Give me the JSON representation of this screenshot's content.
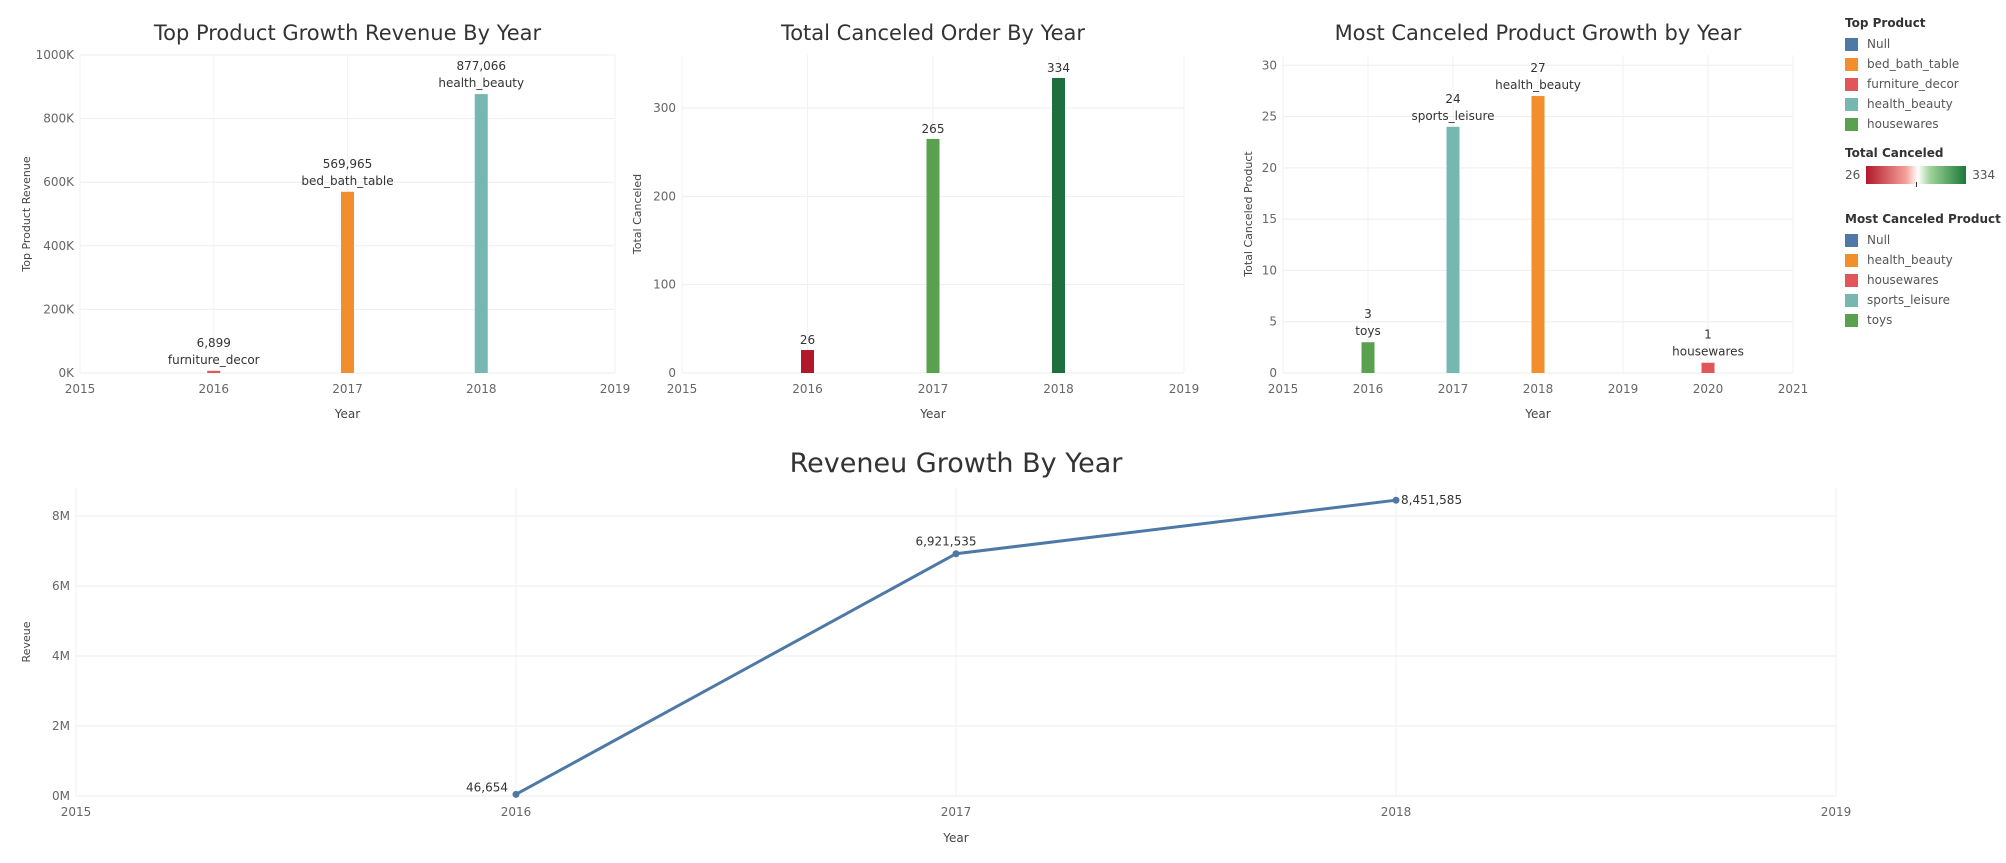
{
  "chart_data": [
    {
      "id": "revenue_top",
      "type": "bar",
      "title": "Top Product Growth Revenue By Year",
      "xlabel": "Year",
      "ylabel": "Top Product Revenue",
      "xlim": [
        2015,
        2019
      ],
      "ylim": [
        0,
        1000000
      ],
      "x_ticks": [
        "2015",
        "2016",
        "2017",
        "2018",
        "2019"
      ],
      "y_ticks": [
        {
          "value": 0,
          "label": "0K"
        },
        {
          "value": 200000,
          "label": "200K"
        },
        {
          "value": 400000,
          "label": "400K"
        },
        {
          "value": 600000,
          "label": "600K"
        },
        {
          "value": 800000,
          "label": "800K"
        },
        {
          "value": 1000000,
          "label": "1000K"
        }
      ],
      "bars": [
        {
          "x": 2016,
          "value": 6899,
          "value_label": "6,899",
          "category": "furniture_decor",
          "color": "#e15759"
        },
        {
          "x": 2017,
          "value": 569965,
          "value_label": "569,965",
          "category": "bed_bath_table",
          "color": "#f28e2b"
        },
        {
          "x": 2018,
          "value": 877066,
          "value_label": "877,066",
          "category": "health_beauty",
          "color": "#76b7b2"
        }
      ]
    },
    {
      "id": "canceled_total",
      "type": "bar",
      "title": "Total Canceled Order By Year",
      "xlabel": "Year",
      "ylabel": "Total Canceled",
      "xlim": [
        2015,
        2019
      ],
      "ylim": [
        0,
        360
      ],
      "x_ticks": [
        "2015",
        "2016",
        "2017",
        "2018",
        "2019"
      ],
      "y_ticks": [
        {
          "value": 0,
          "label": "0"
        },
        {
          "value": 100,
          "label": "100"
        },
        {
          "value": 200,
          "label": "200"
        },
        {
          "value": 300,
          "label": "300"
        }
      ],
      "bars": [
        {
          "x": 2016,
          "value": 26,
          "value_label": "26",
          "category": "",
          "color": "#b2182b"
        },
        {
          "x": 2017,
          "value": 265,
          "value_label": "265",
          "category": "",
          "color": "#59a14f"
        },
        {
          "x": 2018,
          "value": 334,
          "value_label": "334",
          "category": "",
          "color": "#1f6e3f"
        }
      ]
    },
    {
      "id": "canceled_product",
      "type": "bar",
      "title": "Most Canceled Product Growth by Year",
      "xlabel": "Year",
      "ylabel": "Total Canceled Product",
      "xlim": [
        2015,
        2021
      ],
      "ylim": [
        0,
        31
      ],
      "x_ticks": [
        "2015",
        "2016",
        "2017",
        "2018",
        "2019",
        "2020",
        "2021"
      ],
      "y_ticks": [
        {
          "value": 0,
          "label": "0"
        },
        {
          "value": 5,
          "label": "5"
        },
        {
          "value": 10,
          "label": "10"
        },
        {
          "value": 15,
          "label": "15"
        },
        {
          "value": 20,
          "label": "20"
        },
        {
          "value": 25,
          "label": "25"
        },
        {
          "value": 30,
          "label": "30"
        }
      ],
      "bars": [
        {
          "x": 2016,
          "value": 3,
          "value_label": "3",
          "category": "toys",
          "color": "#59a14f"
        },
        {
          "x": 2017,
          "value": 24,
          "value_label": "24",
          "category": "sports_leisure",
          "color": "#76b7b2"
        },
        {
          "x": 2018,
          "value": 27,
          "value_label": "27",
          "category": "health_beauty",
          "color": "#f28e2b"
        },
        {
          "x": 2020,
          "value": 1,
          "value_label": "1",
          "category": "housewares",
          "color": "#e15759"
        }
      ]
    },
    {
      "id": "revenue_line",
      "type": "line",
      "title": "Reveneu Growth By Year",
      "xlabel": "Year",
      "ylabel": "Reveue",
      "xlim": [
        2015,
        2019
      ],
      "ylim": [
        0,
        8800000
      ],
      "x_ticks": [
        "2015",
        "2016",
        "2017",
        "2018",
        "2019"
      ],
      "y_ticks": [
        {
          "value": 0,
          "label": "0M"
        },
        {
          "value": 2000000,
          "label": "2M"
        },
        {
          "value": 4000000,
          "label": "4M"
        },
        {
          "value": 6000000,
          "label": "6M"
        },
        {
          "value": 8000000,
          "label": "8M"
        }
      ],
      "color": "#4e79a7",
      "points": [
        {
          "x": 2016,
          "value": 46654,
          "value_label": "46,654"
        },
        {
          "x": 2017,
          "value": 6921535,
          "value_label": "6,921,535"
        },
        {
          "x": 2018,
          "value": 8451585,
          "value_label": "8,451,585"
        }
      ]
    }
  ],
  "legends": {
    "top_product": {
      "title": "Top Product",
      "items": [
        {
          "label": "Null",
          "color": "#4e79a7"
        },
        {
          "label": "bed_bath_table",
          "color": "#f28e2b"
        },
        {
          "label": "furniture_decor",
          "color": "#e15759"
        },
        {
          "label": "health_beauty",
          "color": "#76b7b2"
        },
        {
          "label": "housewares",
          "color": "#59a14f"
        }
      ]
    },
    "total_canceled": {
      "title": "Total Canceled",
      "min_label": "26",
      "max_label": "334"
    },
    "most_canceled": {
      "title": "Most Canceled Product",
      "items": [
        {
          "label": "Null",
          "color": "#4e79a7"
        },
        {
          "label": "health_beauty",
          "color": "#f28e2b"
        },
        {
          "label": "housewares",
          "color": "#e15759"
        },
        {
          "label": "sports_leisure",
          "color": "#76b7b2"
        },
        {
          "label": "toys",
          "color": "#59a14f"
        }
      ]
    }
  }
}
